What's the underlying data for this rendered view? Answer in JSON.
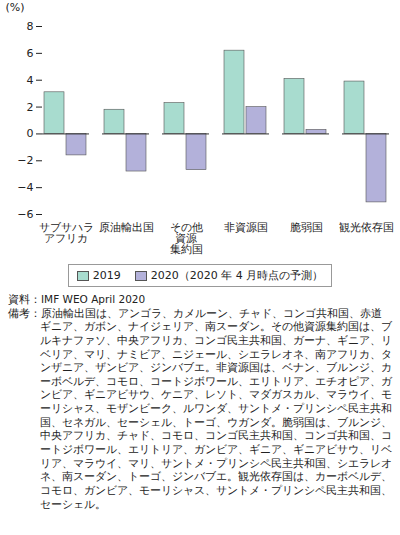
{
  "chart_data": {
    "type": "bar",
    "y_label": "(%)",
    "categories": [
      "サブサハラ\nアフリカ",
      "原油輸出国",
      "その他\n資源\n集約国",
      "非資源国",
      "脆弱国",
      "観光依存国"
    ],
    "series": [
      {
        "name": "2019",
        "color": "#a8dccf",
        "values": [
          3.1,
          1.8,
          2.3,
          6.2,
          4.1,
          3.9
        ]
      },
      {
        "name": "2020（2020 年 4 月時点の予測）",
        "color": "#b3b1da",
        "values": [
          -1.6,
          -2.8,
          -2.7,
          2.0,
          0.3,
          -5.1
        ]
      }
    ],
    "ylim": [
      -6,
      8
    ],
    "yticks": [
      -6,
      -4,
      -2,
      0,
      2,
      4,
      6,
      8
    ],
    "grid": false,
    "legend": "bottom",
    "source": "資料：IMF WEO April 2020",
    "note": "備考：原油輸出国は、アンゴラ、カメルーン、チャド、コンゴ共和国、赤道ギニア、ガボン、ナイジェリア、南スーダン。その他資源集約国は、ブルキナファソ、中央アフリカ、コンゴ民主共和国、ガーナ、ギニア、リベリア、マリ、ナミビア、ニジェール、シエラレオネ、南アフリカ、タンザニア、ザンビア、ジンバブエ。非資源国は、ベナン、ブルンジ、カーボベルデ、コモロ、コートジボワール、エリトリア、エチオピア、ガンビア、ギニアビサウ、ケニア、レソト、マダガスカル、マラウイ、モーリシャス、モザンビーク、ルワンダ、サントメ・プリンシペ民主共和国、セネガル、セーシェル、トーゴ、ウガンダ。脆弱国は、ブルンジ、中央アフリカ、チャド、コモロ、コンゴ民主共和国、コンゴ共和国、コートジボワール、エリトリア、ガンビア、ギニア、ギニアビサウ、リベリア、マラウイ、マリ、サントメ・プリンシペ民主共和国、シエラレオネ、南スーダン、トーゴ、ジンバブエ。観光依存国は、カーボベルデ、コモロ、ガンビア、モーリシャス、サントメ・プリンシペ民主共和国、セーシェル。"
  }
}
